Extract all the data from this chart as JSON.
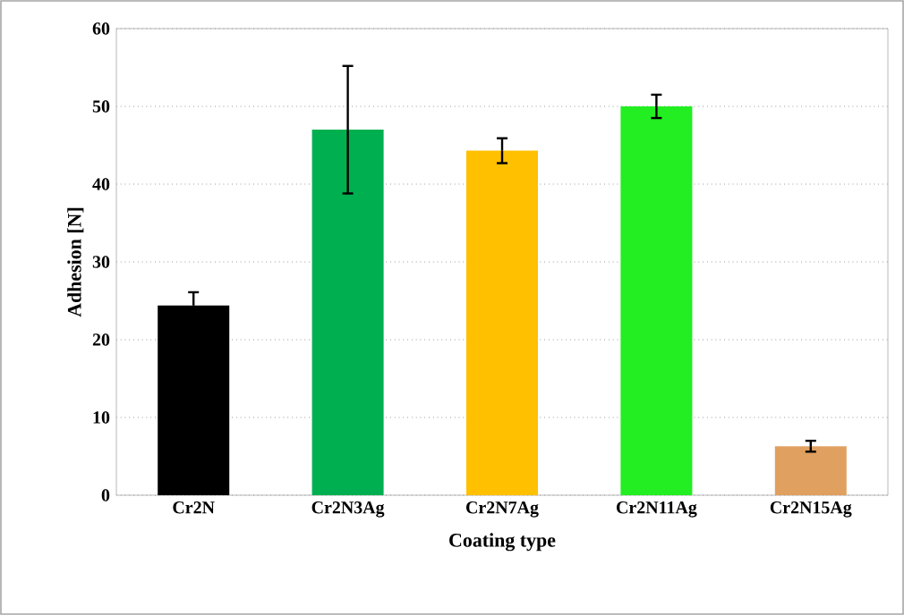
{
  "chart_data": {
    "type": "bar",
    "xlabel": "Coating type",
    "ylabel": "Adhesion [N]",
    "categories": [
      "Cr2N",
      "Cr2N3Ag",
      "Cr2N7Ag",
      "Cr2N11Ag",
      "Cr2N15Ag"
    ],
    "values": [
      24.4,
      47.0,
      44.3,
      50.0,
      6.3
    ],
    "errors": [
      1.7,
      8.2,
      1.6,
      1.5,
      0.7
    ],
    "colors": [
      "#000000",
      "#00b050",
      "#ffc000",
      "#22ee22",
      "#e0a060"
    ],
    "ylim": [
      0,
      60
    ],
    "yticks": [
      0,
      10,
      20,
      30,
      40,
      50,
      60
    ],
    "grid": "y"
  }
}
